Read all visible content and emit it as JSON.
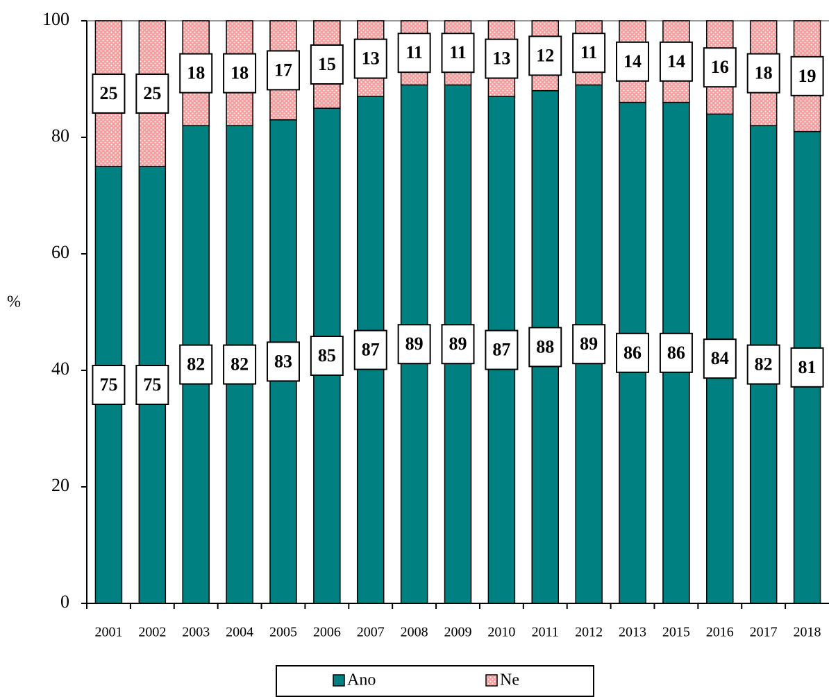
{
  "chart_data": {
    "type": "stacked_bar",
    "y_label": "%",
    "categories": [
      "2001",
      "2002",
      "2003",
      "2004",
      "2005",
      "2006",
      "2007",
      "2008",
      "2009",
      "2010",
      "2011",
      "2012",
      "2013",
      "2015",
      "2016",
      "2017",
      "2018"
    ],
    "series": [
      {
        "name": "Ano",
        "color": "#008080",
        "values": [
          75,
          75,
          82,
          82,
          83,
          85,
          87,
          89,
          89,
          87,
          88,
          89,
          86,
          86,
          84,
          82,
          81
        ]
      },
      {
        "name": "Ne",
        "color": "#f4a0a0",
        "values": [
          25,
          25,
          18,
          18,
          17,
          15,
          13,
          11,
          11,
          13,
          12,
          11,
          14,
          14,
          16,
          18,
          19
        ]
      }
    ],
    "ylim": [
      0,
      100
    ],
    "yticks": [
      0,
      20,
      40,
      60,
      80,
      100
    ],
    "grid": false,
    "legend": "bottom"
  }
}
